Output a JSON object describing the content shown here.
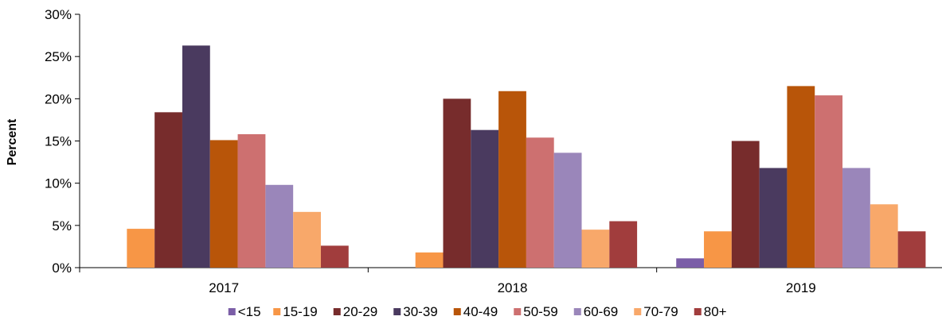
{
  "chart_data": {
    "type": "bar",
    "ylabel": "Percent",
    "xlabel": "",
    "ylim": [
      0,
      30
    ],
    "yticks": [
      "0%",
      "5%",
      "10%",
      "15%",
      "20%",
      "25%",
      "30%"
    ],
    "yticks_values": [
      0,
      5,
      10,
      15,
      20,
      25,
      30
    ],
    "categories": [
      "2017",
      "2018",
      "2019"
    ],
    "legend_position": "bottom",
    "grid": false,
    "series": [
      {
        "name": "<15",
        "color": "#7b5ea7",
        "values": [
          0,
          0,
          1.1
        ]
      },
      {
        "name": "15-19",
        "color": "#f79646",
        "values": [
          4.6,
          1.8,
          4.3
        ]
      },
      {
        "name": "20-29",
        "color": "#772c2c",
        "values": [
          18.4,
          20.0,
          15.0
        ]
      },
      {
        "name": "30-39",
        "color": "#4a3a5f",
        "values": [
          26.3,
          16.3,
          11.8
        ]
      },
      {
        "name": "40-49",
        "color": "#b85509",
        "values": [
          15.1,
          20.9,
          21.5
        ]
      },
      {
        "name": "50-59",
        "color": "#cd7070",
        "values": [
          15.8,
          15.4,
          20.4
        ]
      },
      {
        "name": "60-69",
        "color": "#9a86ba",
        "values": [
          9.8,
          13.6,
          11.8
        ]
      },
      {
        "name": "70-79",
        "color": "#f8a86a",
        "values": [
          6.6,
          4.5,
          7.5
        ]
      },
      {
        "name": "80+",
        "color": "#a13d3d",
        "values": [
          2.6,
          5.5,
          4.3
        ]
      }
    ]
  }
}
